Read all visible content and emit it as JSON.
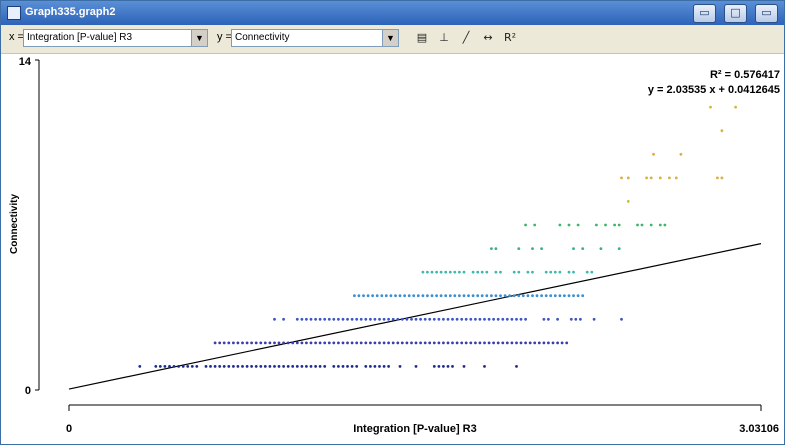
{
  "window": {
    "title": "Graph335.graph2",
    "buttons": {
      "minimize": "▭",
      "maximize": "□",
      "close": "▭"
    }
  },
  "toolbar": {
    "x_prefix": "x =",
    "x_value": "Integration [P-value] R3",
    "y_prefix": "y =",
    "y_value": "Connectivity",
    "tools": {
      "table": "▤",
      "axes": "⊥",
      "line": "╱",
      "range": "↔",
      "r2": "R²"
    }
  },
  "chart_data": {
    "type": "scatter",
    "xlabel": "Integration [P-value] R3",
    "ylabel": "Connectivity",
    "xlim": [
      0,
      3.03106
    ],
    "ylim": [
      0,
      14
    ],
    "x_ticks": [
      "0",
      "3.03106"
    ],
    "y_ticks": [
      "0",
      "14"
    ],
    "r2_label": "R² = 0.576417",
    "equation_label": "y = 2.03535 x + 0.0412645",
    "regression": {
      "slope": 2.03535,
      "intercept": 0.0412645
    },
    "colors": {
      "1": "#1f2a8c",
      "2": "#3a3ea8",
      "3": "#3d56c4",
      "4": "#3f8fd0",
      "5": "#3fb8b0",
      "6": "#38b08a",
      "7": "#40b46a",
      "8": "#c2c040",
      "9": "#d6b23e",
      "10": "#d9b040",
      "11": "#d8b43c",
      "12": "#d4b63a"
    },
    "points": [
      {
        "y": 1,
        "xs": [
          0.31,
          0.38,
          0.4,
          0.42,
          0.44,
          0.46,
          0.48,
          0.5,
          0.52,
          0.54,
          0.56,
          0.6,
          0.62,
          0.64,
          0.66,
          0.68,
          0.7,
          0.72,
          0.74,
          0.76,
          0.78,
          0.8,
          0.82,
          0.84,
          0.86,
          0.88,
          0.9,
          0.92,
          0.94,
          0.96,
          0.98,
          1.0,
          1.02,
          1.04,
          1.06,
          1.08,
          1.1,
          1.12,
          1.16,
          1.18,
          1.2,
          1.22,
          1.24,
          1.26,
          1.3,
          1.32,
          1.34,
          1.36,
          1.38,
          1.4,
          1.45,
          1.52,
          1.6,
          1.62,
          1.64,
          1.66,
          1.68,
          1.73,
          1.82,
          1.96
        ]
      },
      {
        "y": 2,
        "xs": [
          0.64,
          0.66,
          0.68,
          0.7,
          0.72,
          0.74,
          0.76,
          0.78,
          0.8,
          0.82,
          0.84,
          0.86,
          0.88,
          0.9,
          0.92,
          0.94,
          0.96,
          0.98,
          1.0,
          1.02,
          1.04,
          1.06,
          1.08,
          1.1,
          1.12,
          1.14,
          1.16,
          1.18,
          1.2,
          1.22,
          1.24,
          1.26,
          1.28,
          1.3,
          1.32,
          1.34,
          1.36,
          1.38,
          1.4,
          1.42,
          1.44,
          1.46,
          1.48,
          1.5,
          1.52,
          1.54,
          1.56,
          1.58,
          1.6,
          1.62,
          1.64,
          1.66,
          1.68,
          1.7,
          1.72,
          1.74,
          1.76,
          1.78,
          1.8,
          1.82,
          1.84,
          1.86,
          1.88,
          1.9,
          1.92,
          1.94,
          1.96,
          1.98,
          2.0,
          2.02,
          2.04,
          2.06,
          2.08,
          2.1,
          2.12,
          2.14,
          2.16,
          2.18
        ]
      },
      {
        "y": 3,
        "xs": [
          0.9,
          0.94,
          1.0,
          1.02,
          1.04,
          1.06,
          1.08,
          1.1,
          1.12,
          1.14,
          1.16,
          1.18,
          1.2,
          1.22,
          1.24,
          1.26,
          1.28,
          1.3,
          1.32,
          1.34,
          1.36,
          1.38,
          1.4,
          1.42,
          1.44,
          1.46,
          1.48,
          1.5,
          1.52,
          1.54,
          1.56,
          1.58,
          1.6,
          1.62,
          1.64,
          1.66,
          1.68,
          1.7,
          1.72,
          1.74,
          1.76,
          1.78,
          1.8,
          1.82,
          1.84,
          1.86,
          1.88,
          1.9,
          1.92,
          1.94,
          1.96,
          1.98,
          2.0,
          2.08,
          2.1,
          2.14,
          2.2,
          2.22,
          2.24,
          2.3,
          2.42
        ]
      },
      {
        "y": 4,
        "xs": [
          1.25,
          1.27,
          1.29,
          1.31,
          1.33,
          1.35,
          1.37,
          1.39,
          1.41,
          1.43,
          1.45,
          1.47,
          1.49,
          1.51,
          1.53,
          1.55,
          1.57,
          1.59,
          1.61,
          1.63,
          1.65,
          1.67,
          1.69,
          1.71,
          1.73,
          1.75,
          1.77,
          1.79,
          1.81,
          1.83,
          1.85,
          1.87,
          1.89,
          1.91,
          1.93,
          1.95,
          1.97,
          1.99,
          2.01,
          2.03,
          2.05,
          2.07,
          2.09,
          2.11,
          2.13,
          2.15,
          2.17,
          2.19,
          2.21,
          2.23,
          2.25
        ]
      },
      {
        "y": 5,
        "xs": [
          1.55,
          1.57,
          1.59,
          1.61,
          1.63,
          1.65,
          1.67,
          1.69,
          1.71,
          1.73,
          1.77,
          1.79,
          1.81,
          1.83,
          1.87,
          1.89,
          1.95,
          1.97,
          2.01,
          2.03,
          2.09,
          2.11,
          2.13,
          2.15,
          2.19,
          2.21,
          2.27,
          2.29
        ]
      },
      {
        "y": 6,
        "xs": [
          1.85,
          1.87,
          1.97,
          2.03,
          2.07,
          2.21,
          2.25,
          2.33,
          2.41
        ]
      },
      {
        "y": 7,
        "xs": [
          2.0,
          2.04,
          2.15,
          2.19,
          2.23,
          2.31,
          2.35,
          2.39,
          2.41,
          2.49,
          2.51,
          2.55,
          2.59,
          2.61
        ]
      },
      {
        "y": 8,
        "xs": [
          2.45
        ]
      },
      {
        "y": 9,
        "xs": [
          2.42,
          2.45,
          2.53,
          2.55,
          2.59,
          2.63,
          2.66,
          2.84,
          2.86
        ]
      },
      {
        "y": 10,
        "xs": [
          2.56,
          2.68
        ]
      },
      {
        "y": 11,
        "xs": [
          2.86
        ]
      },
      {
        "y": 12,
        "xs": [
          2.81,
          2.92
        ]
      }
    ]
  }
}
